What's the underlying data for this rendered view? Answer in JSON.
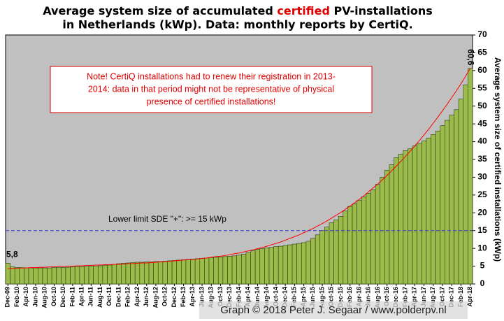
{
  "chart_data": {
    "type": "bar",
    "title": [
      "Average system size of accumulated ",
      "certified",
      " PV-installations",
      "in Netherlands (kWp). Data: monthly reports by CertiQ."
    ],
    "y_label": "Average system size of certified installations (kWp)",
    "categories": [
      "Dec-09",
      null,
      "Feb-10",
      null,
      "Apr-10",
      null,
      "Jun-10",
      null,
      "Aug-10",
      null,
      "Oct-10",
      null,
      "Dec-10",
      null,
      "Feb-11",
      null,
      "Apr-11",
      null,
      "Jun-11",
      null,
      "Aug-11",
      null,
      "Oct-11",
      null,
      "Dec-11",
      null,
      "Feb-12",
      null,
      "Apr-12",
      null,
      "Jun-12",
      null,
      "Aug-12",
      null,
      "Oct-12",
      null,
      "Dec-12",
      null,
      "Feb-13",
      null,
      "Apr-13",
      null,
      "Jun-13",
      null,
      "Aug-13",
      null,
      "Oct-13",
      null,
      "Dec-13",
      null,
      "Feb-14",
      null,
      "Apr-14",
      null,
      "Jun-14",
      null,
      "Aug-14",
      null,
      "Oct-14",
      null,
      "Dec-14",
      null,
      "Feb-15",
      null,
      "Apr-15",
      null,
      "Jun-15",
      null,
      "Aug-15",
      null,
      "Oct-15",
      null,
      "Dec-15",
      null,
      "Feb-16",
      null,
      "Apr-16",
      null,
      "Jun-16",
      null,
      "Aug-16",
      null,
      "Oct-16",
      null,
      "Dec-16",
      null,
      "Feb-17",
      null,
      "Apr-17",
      null,
      "Jun-17",
      null,
      "Aug-17",
      null,
      "Oct-17",
      null,
      "Dec-17",
      null,
      "Feb-18",
      null,
      "Apr-18"
    ],
    "values": [
      5.8,
      4.8,
      4.6,
      4.6,
      4.5,
      4.5,
      4.5,
      4.5,
      4.5,
      4.5,
      4.6,
      4.6,
      4.6,
      4.7,
      4.8,
      4.9,
      4.9,
      4.9,
      5.0,
      5.0,
      5.1,
      5.2,
      5.3,
      5.5,
      5.7,
      5.8,
      5.9,
      6.0,
      6.1,
      6.1,
      6.2,
      6.2,
      6.3,
      6.3,
      6.4,
      6.5,
      6.6,
      6.7,
      6.8,
      6.9,
      7.0,
      7.1,
      7.2,
      7.3,
      7.4,
      7.5,
      7.6,
      7.7,
      7.8,
      7.9,
      8.1,
      8.4,
      8.8,
      9.3,
      9.7,
      9.9,
      10.1,
      10.3,
      10.5,
      10.6,
      10.8,
      11.0,
      11.2,
      11.4,
      11.6,
      12.0,
      12.8,
      13.8,
      15.0,
      16.0,
      17.2,
      18.0,
      19.0,
      20.5,
      21.8,
      22.5,
      23.5,
      24.5,
      25.5,
      26.5,
      28.0,
      30.0,
      32.0,
      33.5,
      35.5,
      36.5,
      37.5,
      38.0,
      38.8,
      39.5,
      40.2,
      41.0,
      42.0,
      43.0,
      44.5,
      46.0,
      47.5,
      49.0,
      52.0,
      56.0,
      60.6
    ],
    "value_labels": [
      "5,8",
      null,
      null,
      null,
      null,
      null,
      null,
      null,
      null,
      null,
      null,
      null,
      null,
      null,
      null,
      null,
      null,
      null,
      null,
      null,
      null,
      null,
      null,
      null,
      null,
      null,
      null,
      null,
      null,
      null,
      null,
      null,
      null,
      null,
      null,
      null,
      null,
      null,
      null,
      null,
      null,
      null,
      null,
      null,
      null,
      null,
      null,
      null,
      null,
      null,
      null,
      null,
      null,
      null,
      null,
      null,
      null,
      null,
      null,
      null,
      null,
      null,
      null,
      null,
      null,
      null,
      null,
      null,
      null,
      null,
      null,
      null,
      null,
      null,
      null,
      null,
      null,
      null,
      null,
      null,
      null,
      null,
      null,
      null,
      null,
      null,
      null,
      null,
      null,
      null,
      null,
      null,
      null,
      null,
      null,
      null,
      null,
      null,
      null,
      null,
      "60,6"
    ],
    "color": "#9bbb4a",
    "trendline": {
      "color": "#ff0000",
      "values": [
        4.3,
        4.4,
        4.4,
        4.5,
        4.5,
        4.6,
        4.6,
        4.7,
        4.7,
        4.8,
        4.8,
        4.9,
        4.9,
        5.0,
        5.0,
        5.1,
        5.1,
        5.2,
        5.2,
        5.3,
        5.3,
        5.4,
        5.4,
        5.5,
        5.5,
        5.6,
        5.7,
        5.7,
        5.8,
        5.9,
        5.9,
        6.0,
        6.1,
        6.2,
        6.3,
        6.4,
        6.5,
        6.6,
        6.7,
        6.8,
        6.9,
        7.0,
        7.2,
        7.3,
        7.5,
        7.7,
        7.8,
        8.0,
        8.2,
        8.5,
        8.7,
        9.0,
        9.3,
        9.6,
        9.9,
        10.2,
        10.6,
        11.0,
        11.4,
        11.8,
        12.3,
        12.8,
        13.3,
        13.8,
        14.4,
        15.0,
        15.6,
        16.3,
        17.0,
        17.7,
        18.5,
        19.3,
        20.1,
        21.0,
        21.9,
        22.8,
        23.8,
        24.8,
        25.9,
        27.0,
        28.1,
        29.3,
        30.5,
        31.8,
        33.1,
        34.5,
        35.9,
        37.3,
        38.8,
        40.3,
        41.9,
        43.5,
        45.2,
        46.9,
        48.7,
        50.5,
        52.4,
        54.3,
        56.3,
        58.4,
        60.6
      ]
    },
    "reference_line": {
      "value": 15,
      "label": "Lower limit  SDE \"+\":   >= 15 kWp",
      "color": "#3333cc"
    },
    "note": [
      "Note! CertiQ installations had to renew their registration in 2013-",
      "2014:  data in  that period  might  not be representative of physical",
      "presence of certified installations!"
    ],
    "watermark": "Graph © 2018 Peter J. Segaar / www.polderpv.nl",
    "ylim": [
      0,
      70
    ],
    "yticks": [
      0,
      5,
      10,
      15,
      20,
      25,
      30,
      35,
      40,
      45,
      50,
      55,
      60,
      65,
      70
    ],
    "grid": false
  }
}
